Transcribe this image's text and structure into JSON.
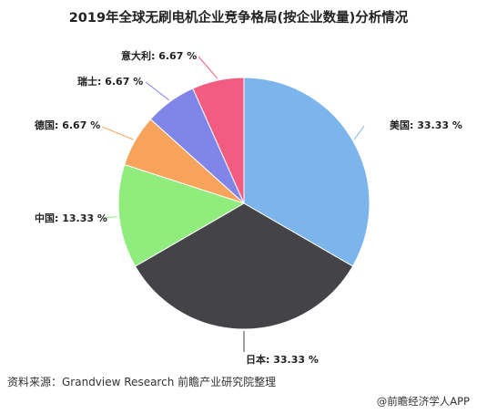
{
  "title": "2019年全球无刷电机企业竞争格局(按企业数量)分析情况",
  "source": "资料来源：Grandview Research 前瞻产业研究院整理",
  "credit": "@前瞻经济学人APP",
  "chart_data": {
    "type": "pie",
    "title": "2019年全球无刷电机企业竞争格局(按企业数量)分析情况",
    "legend": "none",
    "slices": [
      {
        "name": "美国",
        "value": 33.33,
        "label": "美国: 33.33 %",
        "color": "#7cb5ec"
      },
      {
        "name": "日本",
        "value": 33.33,
        "label": "日本: 33.33 %",
        "color": "#434348"
      },
      {
        "name": "中国",
        "value": 13.33,
        "label": "中国: 13.33 %",
        "color": "#90ed7d"
      },
      {
        "name": "德国",
        "value": 6.67,
        "label": "德国: 6.67 %",
        "color": "#f7a35c"
      },
      {
        "name": "瑞士",
        "value": 6.67,
        "label": "瑞士: 6.67 %",
        "color": "#8085e9"
      },
      {
        "name": "意大利",
        "value": 6.67,
        "label": "意大利: 6.67 %",
        "color": "#f15c80"
      }
    ]
  }
}
